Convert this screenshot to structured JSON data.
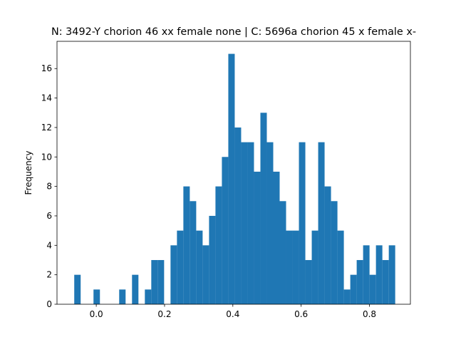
{
  "chart_data": {
    "type": "bar",
    "subtype": "histogram",
    "title": "N: 3492-Y chorion 46 xx female none | C: 5696a chorion 45 x female x-",
    "xlabel": "",
    "ylabel": "Frequency",
    "xlim": [
      -0.115,
      0.92
    ],
    "ylim": [
      0,
      17.85
    ],
    "xticks": [
      0.0,
      0.2,
      0.4,
      0.6,
      0.8
    ],
    "xtick_labels": [
      "0.0",
      "0.2",
      "0.4",
      "0.6",
      "0.8"
    ],
    "yticks": [
      0,
      2,
      4,
      6,
      8,
      10,
      12,
      14,
      16
    ],
    "ytick_labels": [
      "0",
      "2",
      "4",
      "6",
      "8",
      "10",
      "12",
      "14",
      "16"
    ],
    "grid": false,
    "bar_color": "#1f77b4",
    "bin_start": -0.0645,
    "bin_width": 0.0188,
    "values": [
      2,
      0,
      0,
      1,
      0,
      0,
      0,
      1,
      0,
      2,
      0,
      1,
      3,
      3,
      0,
      4,
      5,
      8,
      7,
      5,
      4,
      6,
      8,
      10,
      17,
      12,
      11,
      11,
      9,
      13,
      11,
      9,
      7,
      5,
      5,
      11,
      3,
      5,
      11,
      8,
      7,
      5,
      1,
      2,
      3,
      4,
      2,
      4,
      3,
      4
    ]
  }
}
